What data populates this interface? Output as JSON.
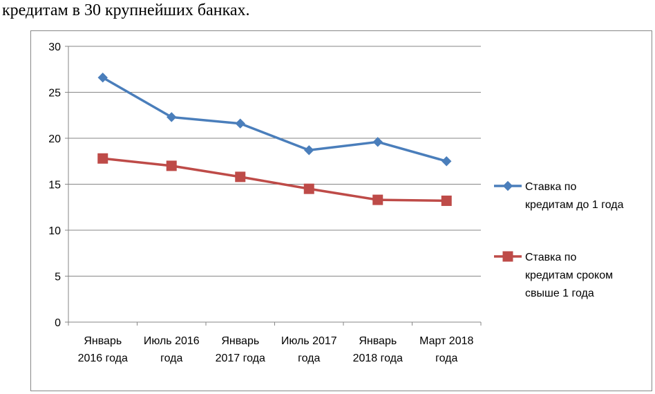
{
  "heading": "кредитам в 30 крупнейших банках.",
  "chart_data": {
    "type": "line",
    "title": "",
    "xlabel": "",
    "ylabel": "",
    "ylim": [
      0,
      30
    ],
    "yticks": [
      "0",
      "5",
      "10",
      "15",
      "20",
      "25",
      "30"
    ],
    "grid": true,
    "legend_position": "right",
    "categories": [
      [
        "Январь",
        "2016 года"
      ],
      [
        "Июль 2016",
        "года"
      ],
      [
        "Январь",
        "2017 года"
      ],
      [
        "Июль 2017",
        "года"
      ],
      [
        "Январь",
        "2018 года"
      ],
      [
        "Март 2018",
        "года"
      ]
    ],
    "series": [
      {
        "name": "Ставка по кредитам до 1 года",
        "legend_lines": [
          "Ставка по",
          "кредитам до 1 года"
        ],
        "marker": "diamond",
        "color": "#4A7EBB",
        "values": [
          26.6,
          22.3,
          21.6,
          18.7,
          19.6,
          17.5
        ]
      },
      {
        "name": "Ставка по кредитам сроком свыше 1 года",
        "legend_lines": [
          "Ставка по",
          "кредитам сроком",
          "свыше 1 года"
        ],
        "marker": "square",
        "color": "#BE4B48",
        "values": [
          17.8,
          17.0,
          15.8,
          14.5,
          13.3,
          13.2
        ]
      }
    ],
    "colors": {
      "grid": "#868686",
      "axis": "#868686"
    }
  }
}
